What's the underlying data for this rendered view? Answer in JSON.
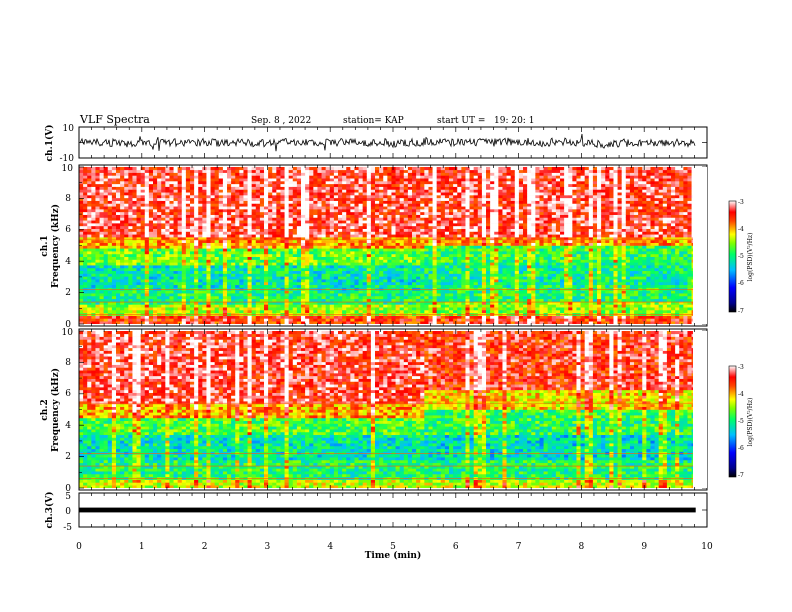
{
  "header": {
    "title": "VLF Spectra",
    "date": "Sep. 8 , 2022",
    "station": "station= KAP",
    "start": "start UT =",
    "start_time": "19: 20: 1"
  },
  "colors": {
    "spectrum": [
      "#00008b",
      "#0000ff",
      "#00bfff",
      "#00ff66",
      "#7fff00",
      "#ffff00",
      "#ff8c00",
      "#ff0000",
      "#ffffff"
    ],
    "trace": "#000000"
  },
  "chart_data": [
    {
      "type": "line",
      "name": "ch1-waveform",
      "ylabel": "ch.1(V)",
      "ylim": [
        -10,
        10
      ],
      "yticks": [
        "10",
        "-10"
      ],
      "xlim": [
        0,
        10
      ],
      "baseline": 0,
      "amplitude": 2.5
    },
    {
      "type": "heatmap",
      "name": "ch1-spectrogram",
      "ylabel": "ch.1\nFrequency (kHz)",
      "ylabel_lines": [
        "ch.1",
        "Frequency (kHz)"
      ],
      "ylim": [
        0,
        10
      ],
      "yticks": [
        "0",
        "2",
        "4",
        "6",
        "8",
        "10"
      ],
      "xlim": [
        0,
        9.82
      ],
      "colorbar": {
        "label": "log(PSD)(V²/Hz)",
        "range": [
          -7,
          -3
        ],
        "ticks": [
          "-3",
          "-4",
          "-5",
          "-6",
          "-7"
        ]
      },
      "bands_before_5_5": [
        {
          "from": 0,
          "to": 0.6,
          "level": -3.6
        },
        {
          "from": 0.6,
          "to": 1.2,
          "level": -4.5
        },
        {
          "from": 1.2,
          "to": 2.2,
          "level": -5.0
        },
        {
          "from": 2.2,
          "to": 3.8,
          "level": -5.2
        },
        {
          "from": 3.8,
          "to": 4.8,
          "level": -4.7
        },
        {
          "from": 4.8,
          "to": 5.6,
          "level": -4.0
        },
        {
          "from": 5.6,
          "to": 10,
          "level": -3.4
        }
      ],
      "bands_after_5_5": [
        {
          "from": 0,
          "to": 0.6,
          "level": -3.6
        },
        {
          "from": 0.6,
          "to": 1.4,
          "level": -4.6
        },
        {
          "from": 1.4,
          "to": 2.4,
          "level": -5.0
        },
        {
          "from": 2.4,
          "to": 4.0,
          "level": -5.1
        },
        {
          "from": 4.0,
          "to": 5.0,
          "level": -4.9
        },
        {
          "from": 5.0,
          "to": 5.6,
          "level": -4.0
        },
        {
          "from": 5.6,
          "to": 10,
          "level": -3.4
        }
      ]
    },
    {
      "type": "heatmap",
      "name": "ch2-spectrogram",
      "ylabel": "ch.2\nFrequency (kHz)",
      "ylabel_lines": [
        "ch.2",
        "Frequency (kHz)"
      ],
      "ylim": [
        0,
        10
      ],
      "yticks": [
        "0",
        "2",
        "4",
        "6",
        "8",
        "10"
      ],
      "xlim": [
        0,
        9.82
      ],
      "colorbar": {
        "label": "log(PSD)(V²/Hz)",
        "range": [
          -7,
          -3
        ],
        "ticks": [
          "-3",
          "-4",
          "-5",
          "-6",
          "-7"
        ]
      },
      "bands_before_5_5": [
        {
          "from": 0,
          "to": 0.5,
          "level": -4.4
        },
        {
          "from": 0.5,
          "to": 1.8,
          "level": -5.0
        },
        {
          "from": 1.8,
          "to": 3.4,
          "level": -5.2
        },
        {
          "from": 3.4,
          "to": 4.4,
          "level": -4.8
        },
        {
          "from": 4.4,
          "to": 5.4,
          "level": -4.0
        },
        {
          "from": 5.4,
          "to": 10,
          "level": -3.4
        }
      ],
      "bands_after_5_5": [
        {
          "from": 0,
          "to": 0.5,
          "level": -4.4
        },
        {
          "from": 0.5,
          "to": 1.8,
          "level": -5.0
        },
        {
          "from": 1.8,
          "to": 3.4,
          "level": -5.3
        },
        {
          "from": 3.4,
          "to": 5.0,
          "level": -4.9
        },
        {
          "from": 5.0,
          "to": 6.2,
          "level": -4.2
        },
        {
          "from": 6.2,
          "to": 10,
          "level": -3.5
        }
      ]
    },
    {
      "type": "line",
      "name": "ch3-waveform",
      "ylabel": "ch.3(V)",
      "ylim": [
        -5,
        5
      ],
      "yticks": [
        "5",
        "0",
        "-5"
      ],
      "xlim": [
        0,
        10
      ],
      "baseline": 0,
      "amplitude": 0.35
    }
  ],
  "xaxis": {
    "label": "Time (min)",
    "range": [
      0,
      10
    ],
    "ticks": [
      "0",
      "1",
      "2",
      "3",
      "4",
      "5",
      "6",
      "7",
      "8",
      "9",
      "10"
    ]
  }
}
